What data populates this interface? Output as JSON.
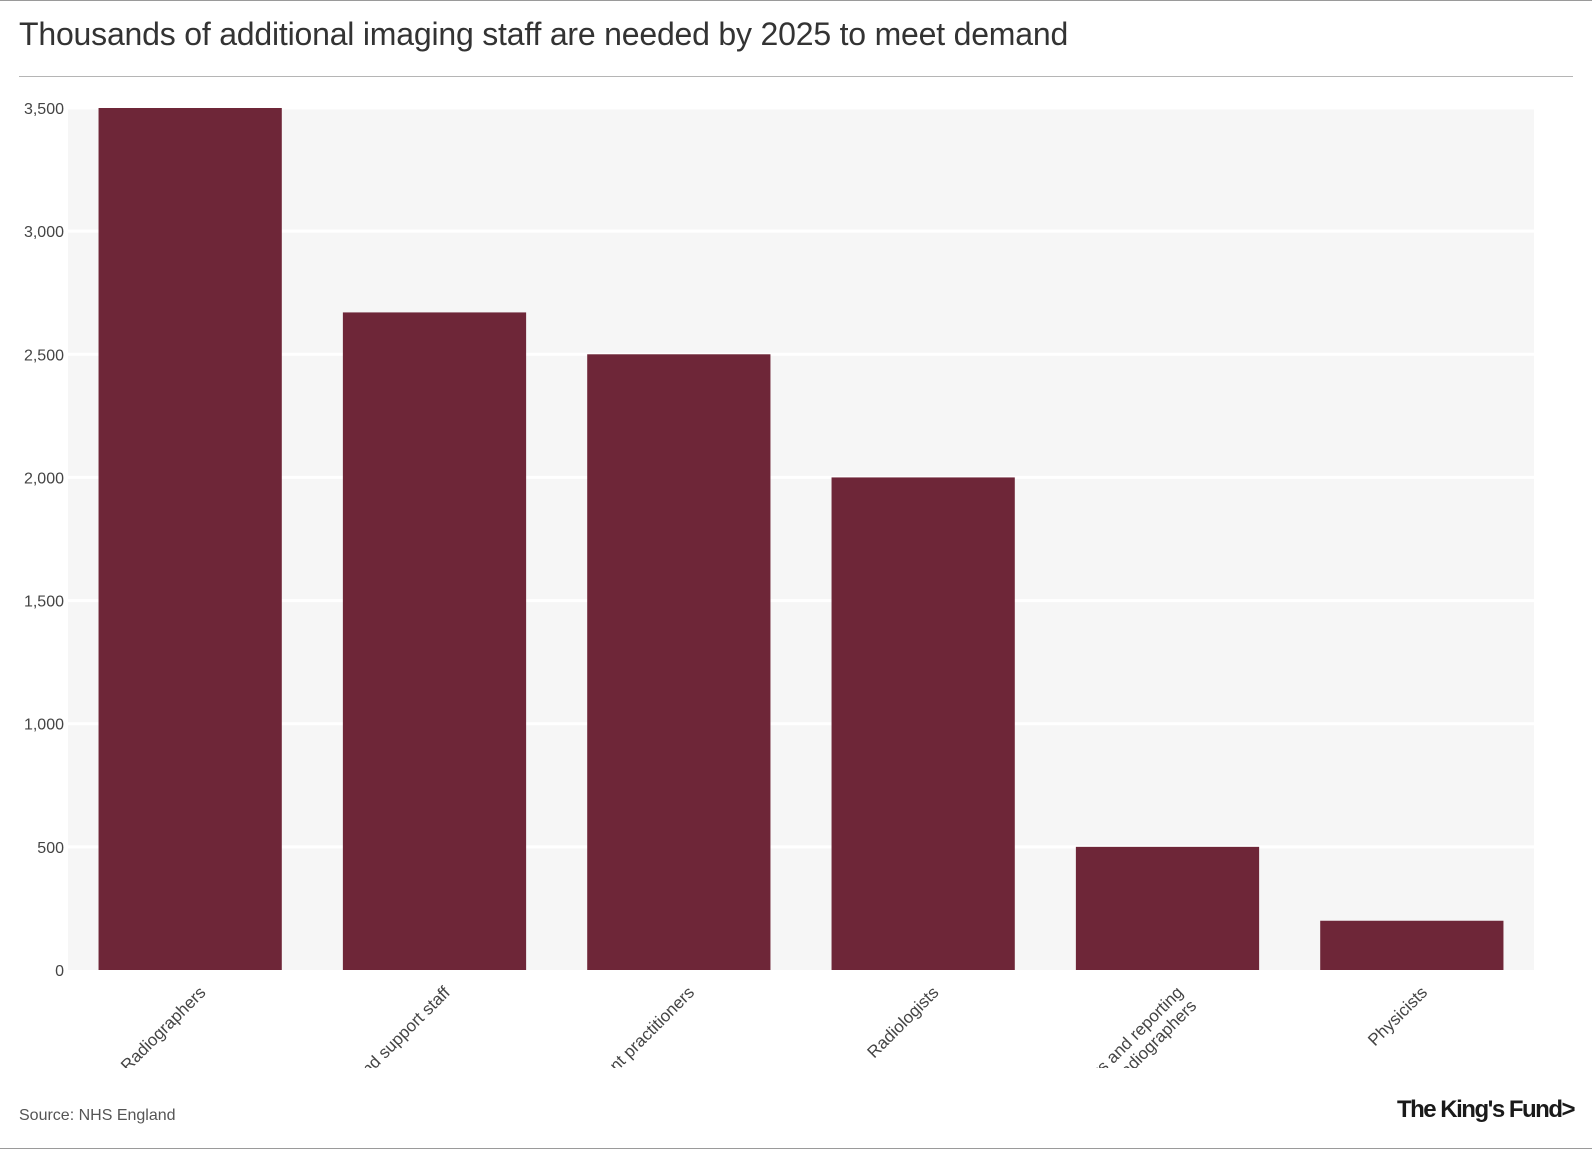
{
  "title": "Thousands of additional imaging staff are needed by 2025 to meet demand",
  "source": "Source: NHS England",
  "logo_text": "The King's Fund>",
  "colors": {
    "bar": "#6e2638",
    "plot_background": "#f6f6f6",
    "grid": "#ffffff",
    "text": "#333333"
  },
  "chart_data": {
    "type": "bar",
    "title": "Thousands of additional imaging staff are needed by 2025 to meet demand",
    "categories": [
      "Radiographers",
      "Assistants and support staff",
      "Assistant practitioners",
      "Radiologists",
      "Sonographers and reporting radiographers",
      "Physicists"
    ],
    "category_lines": [
      [
        "Radiographers"
      ],
      [
        "Assistants and support staff"
      ],
      [
        "Assistant practitioners"
      ],
      [
        "Radiologists"
      ],
      [
        "Sonographers and reporting",
        "radiographers"
      ],
      [
        "Physicists"
      ]
    ],
    "values": [
      3500,
      2670,
      2500,
      2000,
      500,
      200
    ],
    "ylim": [
      0,
      3500
    ],
    "yticks": [
      0,
      500,
      1000,
      1500,
      2000,
      2500,
      3000,
      3500
    ],
    "ytick_labels": [
      "0",
      "500",
      "1,000",
      "1,500",
      "2,000",
      "2,500",
      "3,000",
      "3,500"
    ],
    "grid": true,
    "xlabel": "",
    "ylabel": "",
    "x_label_rotation": -45
  }
}
